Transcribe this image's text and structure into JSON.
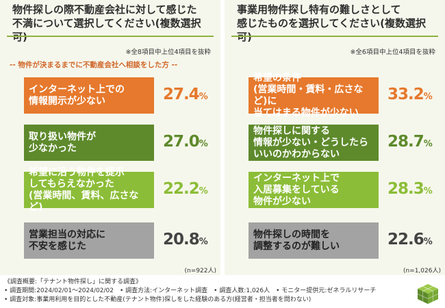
{
  "colors": {
    "orange": "#e6792d",
    "dark_green": "#5e8a2c",
    "light_green": "#8cbd38",
    "gray": "#a3a3a3",
    "rule": "#8db33f",
    "panel_bg": "#f6f7ec"
  },
  "chart_data": [
    {
      "type": "bar",
      "title": "物件探しの際不動産会社に対して感じた\n不満について選択してください(複数選択可)",
      "note": "※全8項目中上位4項目を抜粋",
      "target": "-- 物件が決まるまでに不動産会社へ相談をした方 --",
      "unit": "%",
      "categories": [
        "インターネット上での\n情報開示が少ない",
        "取り扱い物件が\n少なかった",
        "希望に沿う物件を提示\nしてもらえなかった\n(営業時間、賃料、広さなど)",
        "営業担当の対応に\n不安を感じた"
      ],
      "values": [
        27.4,
        27.0,
        22.2,
        20.8
      ],
      "value_labels": [
        "27.4",
        "27.0",
        "22.2",
        "20.8"
      ],
      "n": "(n=922人)"
    },
    {
      "type": "bar",
      "title": "事業用物件探し特有の難しさとして\n感じたものを選択してください(複数選択可)",
      "note": "※全6項目中上位4項目を抜粋",
      "target": "",
      "unit": "%",
      "categories": [
        "希望の条件\n(営業時間・賃料・広さなど)に\n当てはまる物件が少ない",
        "物件探しに関する\n情報が少ない・どうしたら\nいいのかわからない",
        "インターネット上で\n入居募集をしている\n物件が少ない",
        "物件探しの時間を\n調整するのが難しい"
      ],
      "values": [
        33.2,
        28.7,
        28.3,
        22.6
      ],
      "value_labels": [
        "33.2",
        "28.7",
        "28.3",
        "22.6"
      ],
      "n": "(n=1,026人)"
    }
  ],
  "footer": {
    "line1": "《調査概要:「テナント物件探し」に関する調査》",
    "line2": "• 調査期間:2024/02/01〜2024/02/02　• 調査方法:インターネット調査　• 調査人数:1,026人　• モニター提供元:ゼネラルリサーチ",
    "line3": "• 調査対象:事業用利用を目的とした不動産(テナント物件)探しをした経験のある方(経営者・担当者を問わない)"
  },
  "logo_icon": "green-cube-logo-icon"
}
